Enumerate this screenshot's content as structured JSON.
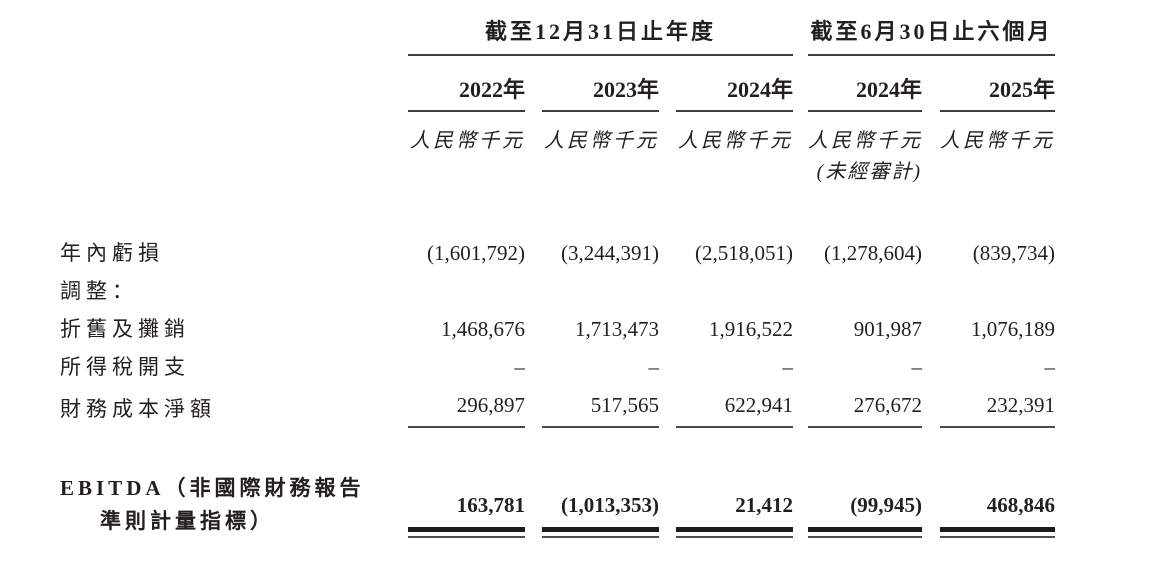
{
  "table": {
    "col_groups": [
      {
        "label": "截至12月31日止年度"
      },
      {
        "label": "截至6月30日止六個月"
      }
    ],
    "years": [
      "2022年",
      "2023年",
      "2024年",
      "2024年",
      "2025年"
    ],
    "units": [
      "人民幣千元",
      "人民幣千元",
      "人民幣千元",
      "人民幣千元",
      "人民幣千元"
    ],
    "unaudited_note": "(未經審計)",
    "rows": [
      {
        "label": "年內虧損",
        "values": [
          "(1,601,792)",
          "(3,244,391)",
          "(2,518,051)",
          "(1,278,604)",
          "(839,734)"
        ]
      },
      {
        "label": "調整：",
        "values": [
          "",
          "",
          "",
          "",
          ""
        ]
      },
      {
        "label": "折舊及攤銷",
        "values": [
          "1,468,676",
          "1,713,473",
          "1,916,522",
          "901,987",
          "1,076,189"
        ]
      },
      {
        "label": "所得稅開支",
        "values": [
          "–",
          "–",
          "–",
          "–",
          "–"
        ]
      },
      {
        "label": "財務成本淨額",
        "values": [
          "296,897",
          "517,565",
          "622,941",
          "276,672",
          "232,391"
        ]
      }
    ],
    "total_row": {
      "label_line1": "EBITDA（非國際財務報告",
      "label_line2": "準則計量指標）",
      "values": [
        "163,781",
        "(1,013,353)",
        "21,412",
        "(99,945)",
        "468,846"
      ]
    }
  },
  "colors": {
    "text": "#231f20",
    "rule_thin": "#3d3d3d",
    "rule_thick": "#1d1d1d",
    "background": "#ffffff"
  }
}
